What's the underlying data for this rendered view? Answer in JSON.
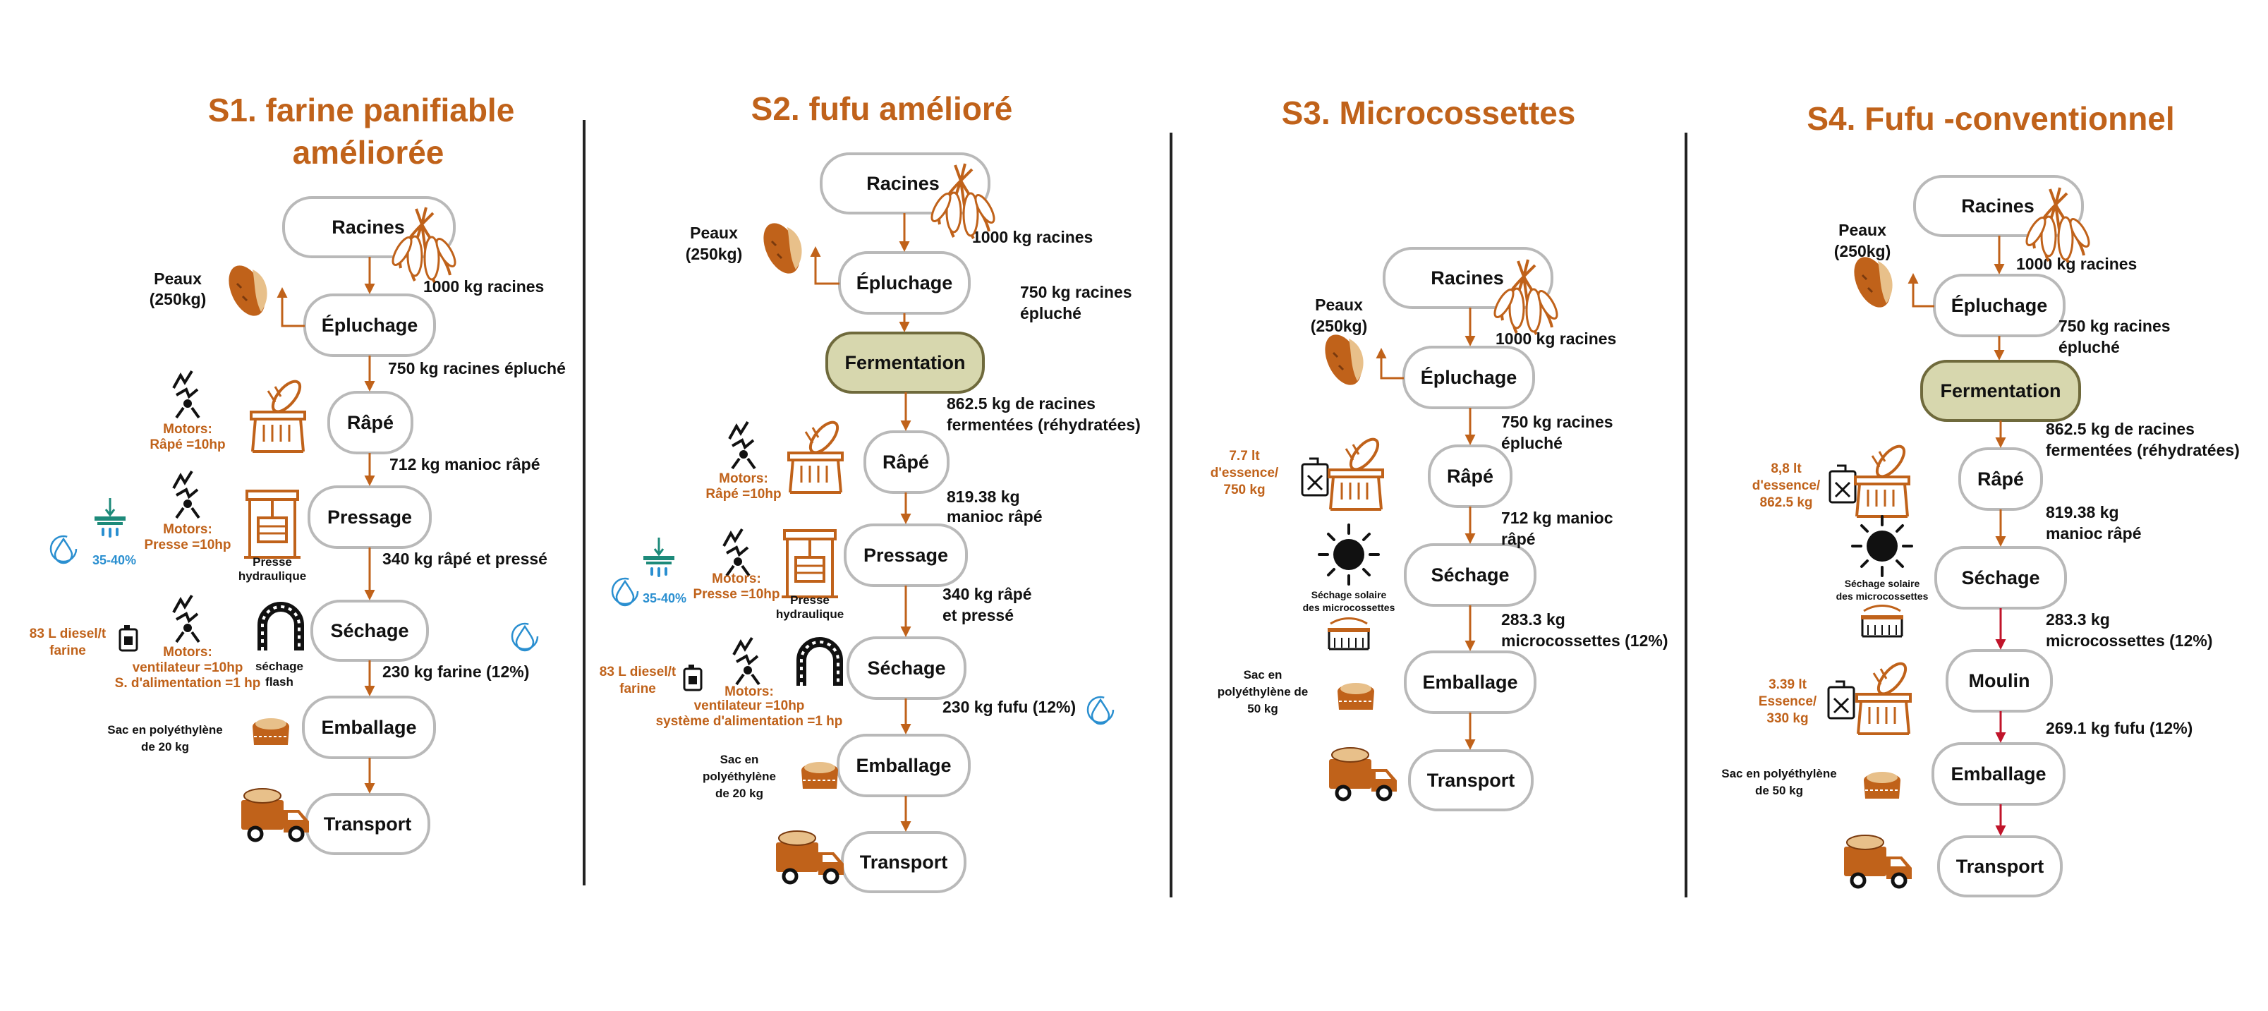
{
  "columns": [
    {
      "title_line1": "S1. farine panifiable",
      "title_line2": "améliorée",
      "steps": [
        "Racines",
        "Épluchage",
        "Râpé",
        "Pressage",
        "Séchage",
        "Emballage",
        "Transport"
      ],
      "flows": [
        "1000 kg racines",
        "750 kg racines épluché",
        "712 kg manioc râpé",
        "340 kg râpé et pressé",
        "230 kg farine (12%)"
      ],
      "peaux": [
        "Peaux",
        "(250kg)"
      ],
      "motors_rape": [
        "Motors:",
        "Râpé =10hp"
      ],
      "motors_presse": [
        "Motors:",
        "Presse =10hp"
      ],
      "presse_label": [
        "Presse",
        "hydraulique"
      ],
      "water_pct": "35-40%",
      "diesel": [
        "83 L diesel/t",
        "farine"
      ],
      "motors_sechage": [
        "Motors:",
        "ventilateur =10hp",
        "S. d'alimentation =1 hp"
      ],
      "flash_label": [
        "séchage",
        "flash"
      ],
      "sac": [
        "Sac en polyéthylène",
        "de 20 kg"
      ]
    },
    {
      "title_line1": "S2. fufu amélioré",
      "steps": [
        "Racines",
        "Épluchage",
        "Fermentation",
        "Râpé",
        "Pressage",
        "Séchage",
        "Emballage",
        "Transport"
      ],
      "flows": [
        "1000 kg racines",
        "750 kg racines",
        "épluché",
        "862.5 kg de racines",
        "fermentées (réhydratées)",
        "819.38 kg",
        "manioc râpé",
        "340 kg râpé",
        "et pressé",
        "230 kg fufu (12%)"
      ],
      "peaux": [
        "Peaux",
        "(250kg)"
      ],
      "motors_rape": [
        "Motors:",
        "Râpé =10hp"
      ],
      "motors_presse": [
        "Motors:",
        "Presse =10hp"
      ],
      "presse_label": [
        "Presse",
        "hydraulique"
      ],
      "water_pct": "35-40%",
      "diesel": [
        "83 L diesel/t",
        "farine"
      ],
      "motors_sechage": [
        "Motors:",
        "ventilateur =10hp",
        "système d'alimentation =1 hp"
      ],
      "sac": [
        "Sac en",
        "polyéthylène",
        "de 20 kg"
      ]
    },
    {
      "title_line1": "S3. Microcossettes",
      "steps": [
        "Racines",
        "Épluchage",
        "Râpé",
        "Séchage",
        "Emballage",
        "Transport"
      ],
      "flows": [
        "1000 kg racines",
        "750 kg racines",
        "épluché",
        "712 kg manioc",
        "râpé",
        "283.3 kg",
        "microcossettes (12%)"
      ],
      "peaux": [
        "Peaux",
        "(250kg)"
      ],
      "essence": [
        "7.7 lt",
        "d'essence/",
        "750 kg"
      ],
      "solaire": [
        "Séchage solaire",
        "des microcossettes"
      ],
      "sac": [
        "Sac en",
        "polyéthylène de",
        "50 kg"
      ]
    },
    {
      "title_line1": "S4. Fufu -conventionnel",
      "steps": [
        "Racines",
        "Épluchage",
        "Fermentation",
        "Râpé",
        "Séchage",
        "Moulin",
        "Emballage",
        "Transport"
      ],
      "flows": [
        "1000 kg racines",
        "750 kg racines",
        "épluché",
        "862.5 kg de racines",
        "fermentées (réhydratées)",
        "819.38 kg",
        "manioc râpé",
        "283.3 kg",
        "microcossettes (12%)",
        "269.1 kg fufu (12%)"
      ],
      "peaux": [
        "Peaux",
        "(250kg)"
      ],
      "essence1": [
        "8,8 lt",
        "d'essence/",
        "862.5 kg"
      ],
      "solaire": [
        "Séchage solaire",
        "des microcossettes"
      ],
      "essence2": [
        "3.39 lt",
        "Essence/",
        "330 kg"
      ],
      "sac": [
        "Sac en polyéthylène",
        "de 50 kg"
      ]
    }
  ],
  "colors": {
    "accent": "#c0621a",
    "box_border": "#b9b9b9",
    "fermentation_fill": "#d7d7ae",
    "water_blue": "#2a8fd0",
    "arrow_red": "#c0142a"
  },
  "icons": [
    "cassava-root-icon",
    "peel-icon",
    "motor-icon",
    "grater-icon",
    "press-icon",
    "water-drop-icon",
    "filter-water-icon",
    "diesel-can-icon",
    "flash-dryer-icon",
    "sack-icon",
    "truck-icon",
    "sun-icon",
    "solar-dryer-icon",
    "fuel-can-icon"
  ]
}
